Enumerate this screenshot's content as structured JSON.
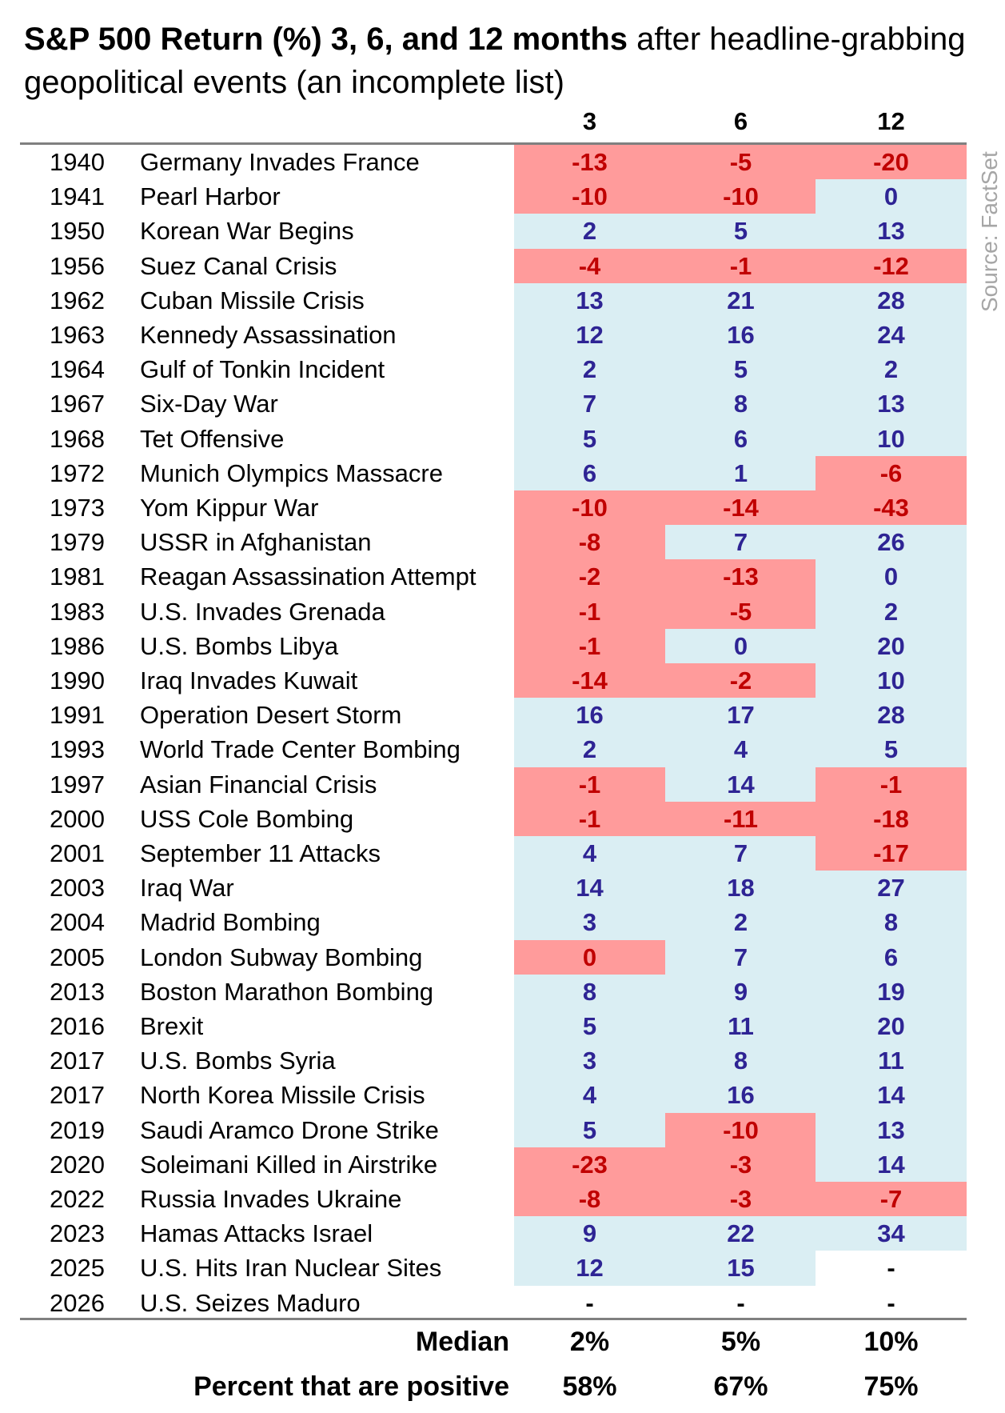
{
  "chart_data": {
    "type": "table",
    "title_bold": "S&P 500 Return (%) 3, 6, and 12 months",
    "title_rest": " after headline-grabbing geopolitical events  (an incomplete list)",
    "source": "Source: FactSet",
    "columns": [
      "3",
      "6",
      "12"
    ],
    "colors": {
      "negative_fill": "#FF9B9B",
      "negative_text": "#C00000",
      "positive_fill": "#DAEEF3",
      "positive_text": "#2E2494"
    },
    "rows": [
      {
        "year": "1940",
        "event": "Germany Invades France",
        "values": [
          "-13",
          "-5",
          "-20"
        ],
        "tones": [
          "r",
          "r",
          "r"
        ]
      },
      {
        "year": "1941",
        "event": "Pearl Harbor",
        "values": [
          "-10",
          "-10",
          "0"
        ],
        "tones": [
          "r",
          "r",
          "b"
        ]
      },
      {
        "year": "1950",
        "event": "Korean War Begins",
        "values": [
          "2",
          "5",
          "13"
        ],
        "tones": [
          "b",
          "b",
          "b"
        ]
      },
      {
        "year": "1956",
        "event": "Suez Canal Crisis",
        "values": [
          "-4",
          "-1",
          "-12"
        ],
        "tones": [
          "r",
          "r",
          "r"
        ]
      },
      {
        "year": "1962",
        "event": "Cuban Missile Crisis",
        "values": [
          "13",
          "21",
          "28"
        ],
        "tones": [
          "b",
          "b",
          "b"
        ]
      },
      {
        "year": "1963",
        "event": "Kennedy Assassination",
        "values": [
          "12",
          "16",
          "24"
        ],
        "tones": [
          "b",
          "b",
          "b"
        ]
      },
      {
        "year": "1964",
        "event": "Gulf of Tonkin Incident",
        "values": [
          "2",
          "5",
          "2"
        ],
        "tones": [
          "b",
          "b",
          "b"
        ]
      },
      {
        "year": "1967",
        "event": "Six-Day War",
        "values": [
          "7",
          "8",
          "13"
        ],
        "tones": [
          "b",
          "b",
          "b"
        ]
      },
      {
        "year": "1968",
        "event": "Tet Offensive",
        "values": [
          "5",
          "6",
          "10"
        ],
        "tones": [
          "b",
          "b",
          "b"
        ]
      },
      {
        "year": "1972",
        "event": "Munich Olympics Massacre",
        "values": [
          "6",
          "1",
          "-6"
        ],
        "tones": [
          "b",
          "b",
          "r"
        ]
      },
      {
        "year": "1973",
        "event": "Yom Kippur War",
        "values": [
          "-10",
          "-14",
          "-43"
        ],
        "tones": [
          "r",
          "r",
          "r"
        ]
      },
      {
        "year": "1979",
        "event": "USSR in Afghanistan",
        "values": [
          "-8",
          "7",
          "26"
        ],
        "tones": [
          "r",
          "b",
          "b"
        ]
      },
      {
        "year": "1981",
        "event": "Reagan Assassination Attempt",
        "values": [
          "-2",
          "-13",
          "0"
        ],
        "tones": [
          "r",
          "r",
          "b"
        ]
      },
      {
        "year": "1983",
        "event": "U.S. Invades Grenada",
        "values": [
          "-1",
          "-5",
          "2"
        ],
        "tones": [
          "r",
          "r",
          "b"
        ]
      },
      {
        "year": "1986",
        "event": "U.S. Bombs Libya",
        "values": [
          "-1",
          "0",
          "20"
        ],
        "tones": [
          "r",
          "b",
          "b"
        ]
      },
      {
        "year": "1990",
        "event": "Iraq Invades Kuwait",
        "values": [
          "-14",
          "-2",
          "10"
        ],
        "tones": [
          "r",
          "r",
          "b"
        ]
      },
      {
        "year": "1991",
        "event": "Operation Desert Storm",
        "values": [
          "16",
          "17",
          "28"
        ],
        "tones": [
          "b",
          "b",
          "b"
        ]
      },
      {
        "year": "1993",
        "event": "World Trade Center Bombing",
        "values": [
          "2",
          "4",
          "5"
        ],
        "tones": [
          "b",
          "b",
          "b"
        ]
      },
      {
        "year": "1997",
        "event": "Asian Financial Crisis",
        "values": [
          "-1",
          "14",
          "-1"
        ],
        "tones": [
          "r",
          "b",
          "r"
        ]
      },
      {
        "year": "2000",
        "event": "USS Cole Bombing",
        "values": [
          "-1",
          "-11",
          "-18"
        ],
        "tones": [
          "r",
          "r",
          "r"
        ]
      },
      {
        "year": "2001",
        "event": "September 11 Attacks",
        "values": [
          "4",
          "7",
          "-17"
        ],
        "tones": [
          "b",
          "b",
          "r"
        ]
      },
      {
        "year": "2003",
        "event": "Iraq War",
        "values": [
          "14",
          "18",
          "27"
        ],
        "tones": [
          "b",
          "b",
          "b"
        ]
      },
      {
        "year": "2004",
        "event": "Madrid Bombing",
        "values": [
          "3",
          "2",
          "8"
        ],
        "tones": [
          "b",
          "b",
          "b"
        ]
      },
      {
        "year": "2005",
        "event": "London Subway Bombing",
        "values": [
          "0",
          "7",
          "6"
        ],
        "tones": [
          "r",
          "b",
          "b"
        ]
      },
      {
        "year": "2013",
        "event": "Boston Marathon Bombing",
        "values": [
          "8",
          "9",
          "19"
        ],
        "tones": [
          "b",
          "b",
          "b"
        ]
      },
      {
        "year": "2016",
        "event": "Brexit",
        "values": [
          "5",
          "11",
          "20"
        ],
        "tones": [
          "b",
          "b",
          "b"
        ]
      },
      {
        "year": "2017",
        "event": "U.S. Bombs Syria",
        "values": [
          "3",
          "8",
          "11"
        ],
        "tones": [
          "b",
          "b",
          "b"
        ]
      },
      {
        "year": "2017",
        "event": "North Korea Missile Crisis",
        "values": [
          "4",
          "16",
          "14"
        ],
        "tones": [
          "b",
          "b",
          "b"
        ]
      },
      {
        "year": "2019",
        "event": "Saudi Aramco Drone Strike",
        "values": [
          "5",
          "-10",
          "13"
        ],
        "tones": [
          "b",
          "r",
          "b"
        ]
      },
      {
        "year": "2020",
        "event": "Soleimani Killed in Airstrike",
        "values": [
          "-23",
          "-3",
          "14"
        ],
        "tones": [
          "r",
          "r",
          "b"
        ]
      },
      {
        "year": "2022",
        "event": "Russia Invades Ukraine",
        "values": [
          "-8",
          "-3",
          "-7"
        ],
        "tones": [
          "r",
          "r",
          "r"
        ]
      },
      {
        "year": "2023",
        "event": "Hamas Attacks Israel",
        "values": [
          "9",
          "22",
          "34"
        ],
        "tones": [
          "b",
          "b",
          "b"
        ]
      },
      {
        "year": "2025",
        "event": "U.S. Hits Iran Nuclear Sites",
        "values": [
          "12",
          "15",
          "-"
        ],
        "tones": [
          "b",
          "b",
          "n"
        ]
      },
      {
        "year": "2026",
        "event": "U.S. Seizes Maduro",
        "values": [
          "-",
          "-",
          "-"
        ],
        "tones": [
          "n",
          "n",
          "n"
        ]
      }
    ],
    "summary": [
      {
        "label": "Median",
        "values": [
          "2%",
          "5%",
          "10%"
        ]
      },
      {
        "label": "Percent that are positive",
        "values": [
          "58%",
          "67%",
          "75%"
        ]
      }
    ]
  }
}
